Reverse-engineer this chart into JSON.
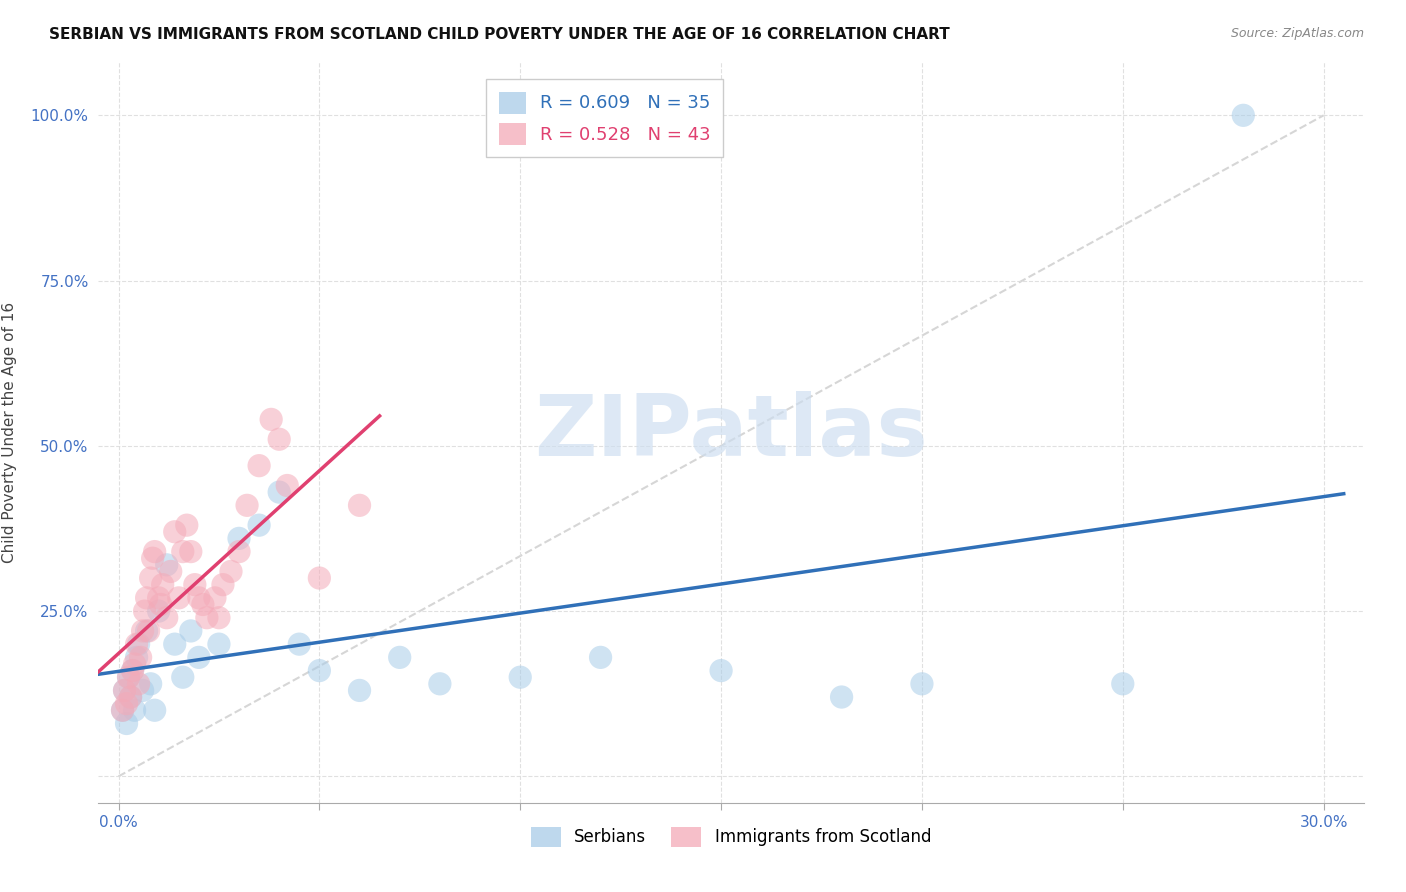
{
  "title": "SERBIAN VS IMMIGRANTS FROM SCOTLAND CHILD POVERTY UNDER THE AGE OF 16 CORRELATION CHART",
  "source": "Source: ZipAtlas.com",
  "ylabel": "Child Poverty Under the Age of 16",
  "serbian_R": 0.609,
  "serbian_N": 35,
  "scotland_R": 0.528,
  "scotland_N": 43,
  "serbian_color": "#a8cce8",
  "scotland_color": "#f4aab8",
  "serbian_line_color": "#3070b8",
  "scotland_line_color": "#e04070",
  "identity_color": "#cccccc",
  "watermark_color": "#ccddf0",
  "grid_color": "#dddddd",
  "background_color": "#ffffff",
  "xlim_min": -0.5,
  "xlim_max": 31.0,
  "ylim_min": -4.0,
  "ylim_max": 108.0,
  "serbian_x": [
    0.1,
    0.15,
    0.2,
    0.25,
    0.3,
    0.35,
    0.4,
    0.45,
    0.5,
    0.6,
    0.7,
    0.8,
    0.9,
    1.0,
    1.2,
    1.4,
    1.6,
    1.8,
    2.0,
    2.5,
    3.0,
    3.5,
    4.0,
    4.5,
    5.0,
    6.0,
    7.0,
    8.0,
    10.0,
    12.0,
    15.0,
    18.0,
    20.0,
    25.0,
    28.0
  ],
  "serbian_y": [
    10.0,
    13.0,
    8.0,
    15.0,
    12.0,
    16.0,
    10.0,
    18.0,
    20.0,
    13.0,
    22.0,
    14.0,
    10.0,
    25.0,
    32.0,
    20.0,
    15.0,
    22.0,
    18.0,
    20.0,
    36.0,
    38.0,
    43.0,
    20.0,
    16.0,
    13.0,
    18.0,
    14.0,
    15.0,
    18.0,
    16.0,
    12.0,
    14.0,
    14.0,
    100.0
  ],
  "scotland_x": [
    0.1,
    0.15,
    0.2,
    0.25,
    0.3,
    0.35,
    0.4,
    0.45,
    0.5,
    0.55,
    0.6,
    0.65,
    0.7,
    0.75,
    0.8,
    0.85,
    0.9,
    1.0,
    1.05,
    1.1,
    1.2,
    1.3,
    1.4,
    1.5,
    1.6,
    1.7,
    1.8,
    1.9,
    2.0,
    2.1,
    2.2,
    2.4,
    2.5,
    2.6,
    2.8,
    3.0,
    3.2,
    3.5,
    3.8,
    4.0,
    4.2,
    5.0,
    6.0
  ],
  "scotland_y": [
    10.0,
    13.0,
    11.0,
    15.0,
    12.0,
    16.0,
    17.0,
    20.0,
    14.0,
    18.0,
    22.0,
    25.0,
    27.0,
    22.0,
    30.0,
    33.0,
    34.0,
    27.0,
    26.0,
    29.0,
    24.0,
    31.0,
    37.0,
    27.0,
    34.0,
    38.0,
    34.0,
    29.0,
    27.0,
    26.0,
    24.0,
    27.0,
    24.0,
    29.0,
    31.0,
    34.0,
    41.0,
    47.0,
    54.0,
    51.0,
    44.0,
    30.0,
    41.0
  ],
  "title_fontsize": 11,
  "ylabel_fontsize": 11,
  "tick_fontsize": 11,
  "legend_fontsize": 13
}
